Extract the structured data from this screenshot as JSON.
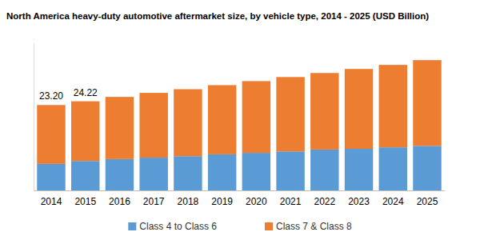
{
  "chart_data": {
    "type": "bar",
    "title": "North America heavy-duty automotive aftermarket size, by vehicle type, 2014 - 2025 (USD Billion)",
    "categories": [
      "2014",
      "2015",
      "2016",
      "2017",
      "2018",
      "2019",
      "2020",
      "2021",
      "2022",
      "2023",
      "2024",
      "2025"
    ],
    "series": [
      {
        "name": "Class 4 to Class 6",
        "color": "#5b9bd5",
        "values": [
          7.2,
          8.0,
          8.5,
          8.9,
          9.3,
          9.8,
          10.2,
          10.6,
          11.1,
          11.3,
          11.7,
          12.1
        ]
      },
      {
        "name": "Class 7 & Class 8",
        "color": "#ed7d31",
        "values": [
          16.0,
          16.22,
          16.9,
          17.6,
          18.2,
          18.8,
          19.5,
          20.2,
          20.8,
          21.7,
          22.4,
          23.3
        ]
      }
    ],
    "annotations": [
      {
        "x": "2014",
        "label": "23.20",
        "value": 23.2
      },
      {
        "x": "2015",
        "label": "24.22",
        "value": 24.22
      }
    ],
    "ylim": [
      0,
      40
    ],
    "stacked": true,
    "grid": false,
    "legend": "bottom",
    "tick_labels": "x"
  }
}
